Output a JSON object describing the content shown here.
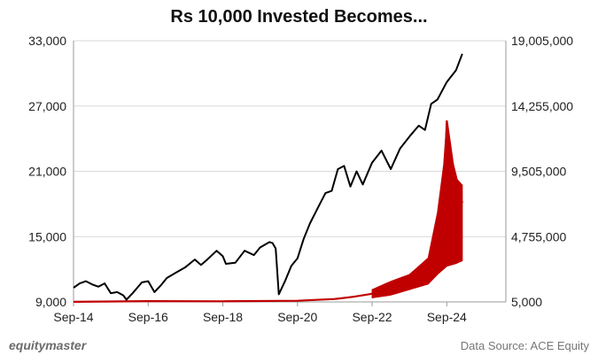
{
  "chart_data": {
    "type": "line",
    "title": "Rs 10,000 Invested Becomes...",
    "xlabel": "",
    "ylabel": "",
    "x_ticks": [
      "Sep-14",
      "Sep-16",
      "Sep-18",
      "Sep-20",
      "Sep-22",
      "Sep-24"
    ],
    "x_range": [
      "Sep-14",
      "Apr-26"
    ],
    "left_axis": {
      "ticks": [
        "9,000",
        "15,000",
        "21,000",
        "27,000",
        "33,000"
      ],
      "ylim": [
        9000,
        33000
      ]
    },
    "right_axis": {
      "ticks": [
        "5,000",
        "4,755,000",
        "9,505,000",
        "14,255,000",
        "19,005,000"
      ],
      "ylim": [
        5000,
        19005000
      ]
    },
    "grid": "horizontal",
    "series": [
      {
        "axis": "left",
        "color": "#000000",
        "points": [
          [
            "2014-09",
            10300
          ],
          [
            "2014-11",
            10700
          ],
          [
            "2015-01",
            10900
          ],
          [
            "2015-03",
            10600
          ],
          [
            "2015-05",
            10400
          ],
          [
            "2015-07",
            10700
          ],
          [
            "2015-09",
            9800
          ],
          [
            "2015-11",
            9900
          ],
          [
            "2016-01",
            9600
          ],
          [
            "2016-02",
            9200
          ],
          [
            "2016-04",
            9800
          ],
          [
            "2016-07",
            10800
          ],
          [
            "2016-09",
            10900
          ],
          [
            "2016-11",
            9900
          ],
          [
            "2017-01",
            10500
          ],
          [
            "2017-03",
            11200
          ],
          [
            "2017-06",
            11700
          ],
          [
            "2017-09",
            12200
          ],
          [
            "2017-12",
            12900
          ],
          [
            "2018-02",
            12400
          ],
          [
            "2018-04",
            12900
          ],
          [
            "2018-07",
            13700
          ],
          [
            "2018-09",
            13200
          ],
          [
            "2018-10",
            12500
          ],
          [
            "2019-01",
            12600
          ],
          [
            "2019-04",
            13700
          ],
          [
            "2019-07",
            13300
          ],
          [
            "2019-09",
            14000
          ],
          [
            "2019-12",
            14500
          ],
          [
            "2020-01",
            14400
          ],
          [
            "2020-02",
            13900
          ],
          [
            "2020-03",
            9700
          ],
          [
            "2020-05",
            10900
          ],
          [
            "2020-07",
            12300
          ],
          [
            "2020-09",
            13000
          ],
          [
            "2020-11",
            14800
          ],
          [
            "2021-01",
            16200
          ],
          [
            "2021-04",
            17900
          ],
          [
            "2021-06",
            19000
          ],
          [
            "2021-08",
            19200
          ],
          [
            "2021-10",
            21200
          ],
          [
            "2021-12",
            21500
          ],
          [
            "2022-02",
            19600
          ],
          [
            "2022-04",
            21000
          ],
          [
            "2022-06",
            19800
          ],
          [
            "2022-09",
            21800
          ],
          [
            "2022-12",
            22900
          ],
          [
            "2023-03",
            21200
          ],
          [
            "2023-06",
            23100
          ],
          [
            "2023-09",
            24200
          ],
          [
            "2023-12",
            25200
          ],
          [
            "2024-02",
            24800
          ],
          [
            "2024-04",
            27200
          ],
          [
            "2024-06",
            27600
          ],
          [
            "2024-09",
            29200
          ],
          [
            "2024-12",
            30300
          ],
          [
            "2025-02",
            31800
          ]
        ]
      },
      {
        "axis": "right",
        "color": "#c00000",
        "points": [
          [
            "2014-09",
            10000
          ],
          [
            "2016-09",
            60000
          ],
          [
            "2018-09",
            50000
          ],
          [
            "2020-09",
            90000
          ],
          [
            "2021-09",
            220000
          ],
          [
            "2022-03",
            380000
          ],
          [
            "2022-09",
            600000
          ],
          [
            "2023-03",
            1000000
          ],
          [
            "2023-09",
            1500000
          ],
          [
            "2024-03",
            2600000
          ],
          [
            "2024-06",
            4400000
          ],
          [
            "2024-08",
            7000000
          ],
          [
            "2024-09",
            13200000
          ],
          [
            "2024-11",
            10000000
          ],
          [
            "2025-01",
            8200000
          ],
          [
            "2025-02",
            7200000
          ]
        ],
        "band_low": [
          [
            "2022-09",
            300000
          ],
          [
            "2023-03",
            500000
          ],
          [
            "2023-09",
            900000
          ],
          [
            "2024-03",
            1300000
          ],
          [
            "2024-06",
            2000000
          ],
          [
            "2024-09",
            2600000
          ],
          [
            "2024-12",
            2800000
          ],
          [
            "2025-02",
            3000000
          ]
        ],
        "band_high": [
          [
            "2022-09",
            900000
          ],
          [
            "2023-03",
            1500000
          ],
          [
            "2023-09",
            2000000
          ],
          [
            "2024-03",
            3200000
          ],
          [
            "2024-06",
            6500000
          ],
          [
            "2024-08",
            10000000
          ],
          [
            "2024-09",
            13200000
          ],
          [
            "2024-10",
            11000000
          ],
          [
            "2024-12",
            9000000
          ],
          [
            "2025-02",
            8500000
          ]
        ]
      }
    ]
  },
  "footer": {
    "brand": "equitymaster",
    "source": "Data Source: ACE Equity"
  }
}
